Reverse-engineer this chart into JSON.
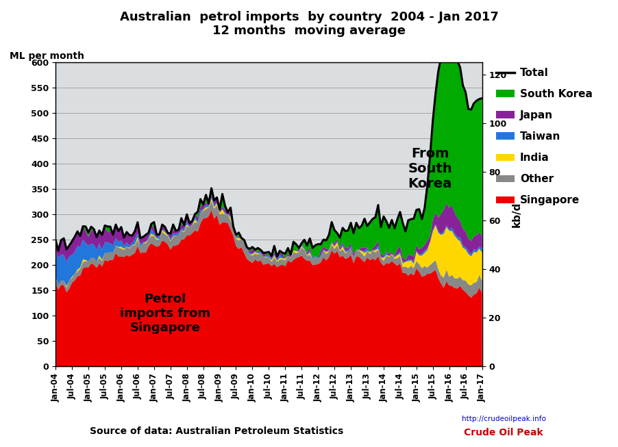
{
  "title_line1": "Australian  petrol imports  by country  2004 - Jan 2017",
  "title_line2": "12 months  moving average",
  "ylabel_left": "ML per month",
  "ylabel_right": "kb/d",
  "source": "Source of data: Australian Petroleum Statistics",
  "annotation1": "From\nSouth\nKorea",
  "annotation2": "Petrol\nimports from\nSingapore",
  "ylim_left": [
    0,
    600
  ],
  "ylim_right": [
    0,
    125
  ],
  "yticks_left": [
    0,
    50,
    100,
    150,
    200,
    250,
    300,
    350,
    400,
    450,
    500,
    550,
    600
  ],
  "yticks_right": [
    0,
    20,
    40,
    60,
    80,
    100,
    120
  ],
  "colors": {
    "Singapore": "#EE0000",
    "Other": "#888888",
    "India": "#FFD700",
    "Taiwan": "#2277DD",
    "Japan": "#882299",
    "South Korea": "#00AA00",
    "Total": "#000000"
  },
  "background_color": "#FFFFFF",
  "n_points": 157
}
